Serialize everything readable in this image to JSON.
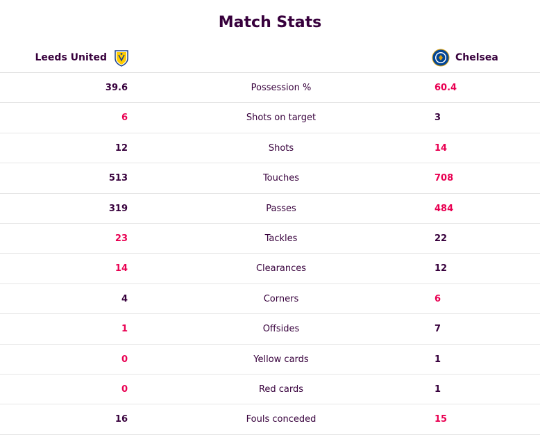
{
  "title": "Match Stats",
  "home_team": {
    "name": "Leeds United",
    "crest_icon": "leeds-crest-icon"
  },
  "away_team": {
    "name": "Chelsea",
    "crest_icon": "chelsea-crest-icon"
  },
  "colors": {
    "highlight": "#e90052",
    "text": "#37003c",
    "divider": "#e6e6e6"
  },
  "stats": [
    {
      "label": "Possession %",
      "home": "39.6",
      "away": "60.4",
      "home_highlight": false,
      "away_highlight": true
    },
    {
      "label": "Shots on target",
      "home": "6",
      "away": "3",
      "home_highlight": true,
      "away_highlight": false
    },
    {
      "label": "Shots",
      "home": "12",
      "away": "14",
      "home_highlight": false,
      "away_highlight": true
    },
    {
      "label": "Touches",
      "home": "513",
      "away": "708",
      "home_highlight": false,
      "away_highlight": true
    },
    {
      "label": "Passes",
      "home": "319",
      "away": "484",
      "home_highlight": false,
      "away_highlight": true
    },
    {
      "label": "Tackles",
      "home": "23",
      "away": "22",
      "home_highlight": true,
      "away_highlight": false
    },
    {
      "label": "Clearances",
      "home": "14",
      "away": "12",
      "home_highlight": true,
      "away_highlight": false
    },
    {
      "label": "Corners",
      "home": "4",
      "away": "6",
      "home_highlight": false,
      "away_highlight": true
    },
    {
      "label": "Offsides",
      "home": "1",
      "away": "7",
      "home_highlight": true,
      "away_highlight": false
    },
    {
      "label": "Yellow cards",
      "home": "0",
      "away": "1",
      "home_highlight": true,
      "away_highlight": false
    },
    {
      "label": "Red cards",
      "home": "0",
      "away": "1",
      "home_highlight": true,
      "away_highlight": false
    },
    {
      "label": "Fouls conceded",
      "home": "16",
      "away": "15",
      "home_highlight": false,
      "away_highlight": true
    }
  ]
}
